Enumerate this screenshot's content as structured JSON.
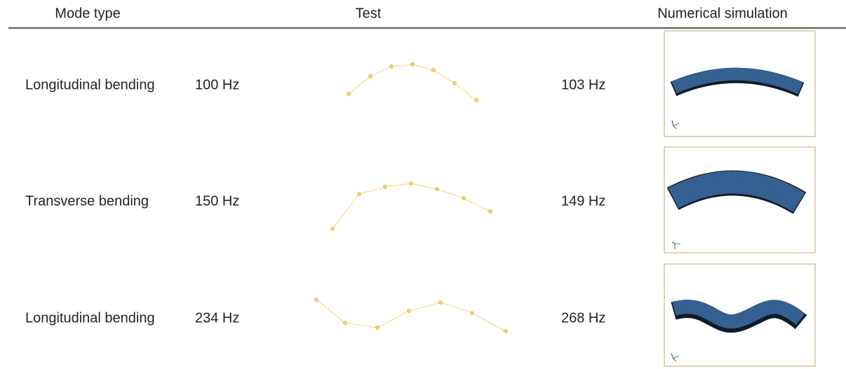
{
  "table": {
    "header": [
      "Mode type",
      "Test",
      "Numerical simulation"
    ],
    "rows": [
      [
        "Longitudinal bending",
        "100 Hz",
        "103 Hz"
      ],
      [
        "Transverse bending",
        "150 Hz",
        "149 Hz"
      ],
      [
        "Longitudinal bending",
        "234 Hz",
        "268 Hz"
      ]
    ]
  }
}
